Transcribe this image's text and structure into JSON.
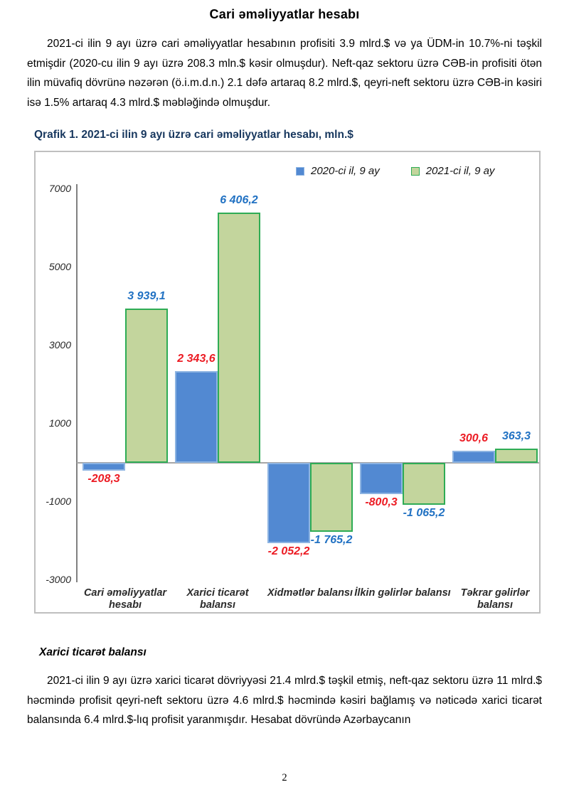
{
  "page": {
    "title": "Cari əməliyyatlar hesabı",
    "page_number": "2"
  },
  "intro": {
    "paragraph": "2021-ci ilin 9 ayı üzrə cari əməliyyatlar hesabının profisiti 3.9 mlrd.$ və ya ÜDM-in 10.7%-ni təşkil etmişdir (2020-cu ilin 9 ayı üzrə 208.3 mln.$ kəsir olmuşdur). Neft-qaz sektoru üzrə CƏB-in profisiti ötən ilin müvafiq dövrünə nəzərən (ö.i.m.d.n.) 2.1 dəfə artaraq 8.2 mlrd.$, qeyri-neft sektoru üzrə CƏB-in kəsiri isə 1.5% artaraq 4.3 mlrd.$ məbləğində olmuşdur."
  },
  "chart": {
    "caption": "Qrafik 1. 2021-ci ilin 9 ayı üzrə cari əməliyyatlar hesabı, mln.$"
  },
  "chart_data": {
    "type": "bar",
    "title": "Qrafik 1. 2021-ci ilin 9 ayı üzrə cari əməliyyatlar hesabı, mln.$",
    "unit": "mln.$",
    "categories": [
      "Cari əməliyyatlar hesabı",
      "Xarici ticarət balansı",
      "Xidmətlər balansı",
      "İlkin gəlirlər balansı",
      "Təkrar gəlirlər balansı"
    ],
    "series": [
      {
        "name": "2020-ci il, 9 ay",
        "fill": "#5289D2",
        "border": "#8DB4E2",
        "label_color": "#EC1C24",
        "values": [
          -208.3,
          2343.6,
          -2052.2,
          -800.3,
          300.6
        ],
        "labels": [
          "-208,3",
          "2 343,6",
          "-2 052,2",
          "-800,3",
          "300,6"
        ]
      },
      {
        "name": "2021-ci il, 9 ay",
        "fill": "#C3D59D",
        "border": "#2EAC55",
        "label_color": "#2272C3",
        "values": [
          3939.1,
          6406.2,
          -1765.2,
          -1065.2,
          363.3
        ],
        "labels": [
          "3 939,1",
          "6 406,2",
          "-1 765,2",
          "-1 065,2",
          "363,3"
        ]
      }
    ],
    "y_ticks": [
      7000,
      5000,
      3000,
      1000,
      -1000,
      -3000
    ],
    "ylim": [
      -3000,
      7000
    ],
    "grid": false,
    "legend_position": "top-right"
  },
  "section": {
    "heading": "Xarici ticarət balansı",
    "paragraph": "2021-ci ilin 9 ayı üzrə xarici ticarət dövriyyəsi 21.4 mlrd.$ təşkil etmiş, neft-qaz sektoru üzrə 11 mlrd.$ həcmində profisit qeyri-neft sektoru üzrə 4.6 mlrd.$ həcmində kəsiri bağlamış və nəticədə xarici ticarət balansında 6.4 mlrd.$-lıq profisit yaranmışdır. Hesabat dövründə Azərbaycanın"
  }
}
